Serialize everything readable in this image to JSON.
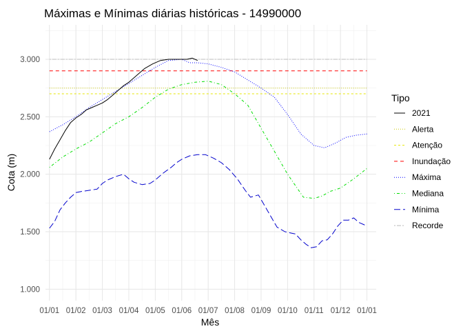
{
  "chart_data": {
    "type": "line",
    "title": "Máximas e Mínimas diárias históricas - 14990000",
    "xlabel": "Mês",
    "ylabel": "Cota (m)",
    "x_ticks": [
      "01/01",
      "01/02",
      "01/03",
      "01/04",
      "01/05",
      "01/06",
      "01/07",
      "01/08",
      "01/09",
      "01/10",
      "01/11",
      "01/12",
      "01/01"
    ],
    "y_ticks": [
      "1.000",
      "1.500",
      "2.000",
      "2.500",
      "3.000"
    ],
    "xlim": [
      -0.15,
      12.35
    ],
    "ylim": [
      0.9,
      3.3
    ],
    "grid": true,
    "legend": {
      "title": "Tipo",
      "position": "right",
      "entries": [
        {
          "name": "2021",
          "color": "#000000",
          "dash": "solid"
        },
        {
          "name": "Alerta",
          "color": "#c8c800",
          "dash": "dotted"
        },
        {
          "name": "Atenção",
          "color": "#e6e600",
          "dash": "dashed-short"
        },
        {
          "name": "Inundação",
          "color": "#ff0000",
          "dash": "dashed"
        },
        {
          "name": "Máxima",
          "color": "#0000ff",
          "dash": "dotted"
        },
        {
          "name": "Mediana",
          "color": "#00dd00",
          "dash": "dotdash"
        },
        {
          "name": "Mínima",
          "color": "#0000cc",
          "dash": "longdash"
        },
        {
          "name": "Recorde",
          "color": "#bbbbbb",
          "dash": "twodash"
        }
      ]
    },
    "series": [
      {
        "name": "2021",
        "x": [
          0,
          0.2,
          0.4,
          0.6,
          0.8,
          1,
          1.2,
          1.4,
          1.6,
          1.8,
          2,
          2.2,
          2.4,
          2.6,
          2.8,
          3,
          3.3,
          3.6,
          3.9,
          4.2,
          4.5,
          4.8,
          5,
          5.2,
          5.4,
          5.6
        ],
        "y": [
          2.13,
          2.22,
          2.3,
          2.38,
          2.45,
          2.49,
          2.52,
          2.56,
          2.58,
          2.6,
          2.62,
          2.65,
          2.69,
          2.73,
          2.77,
          2.8,
          2.86,
          2.92,
          2.96,
          2.99,
          3.0,
          3.0,
          3.0,
          3.0,
          3.01,
          2.99
        ]
      },
      {
        "name": "Alerta",
        "x": [
          0,
          12
        ],
        "y": [
          2.75,
          2.75
        ]
      },
      {
        "name": "Atenção",
        "x": [
          0,
          12
        ],
        "y": [
          2.7,
          2.7
        ]
      },
      {
        "name": "Inundação",
        "x": [
          0,
          12
        ],
        "y": [
          2.9,
          2.9
        ]
      },
      {
        "name": "Recorde",
        "x": [
          0,
          12
        ],
        "y": [
          3.0,
          3.0
        ]
      },
      {
        "name": "Máxima",
        "x": [
          0,
          0.5,
          1,
          1.5,
          2,
          2.5,
          3,
          3.5,
          4,
          4.5,
          5,
          5.3,
          5.6,
          6,
          6.5,
          7,
          7.5,
          8,
          8.5,
          9,
          9.5,
          10,
          10.4,
          10.8,
          11.2,
          11.6,
          12
        ],
        "y": [
          2.37,
          2.43,
          2.5,
          2.58,
          2.65,
          2.72,
          2.79,
          2.86,
          2.93,
          2.99,
          3.0,
          2.97,
          2.97,
          2.96,
          2.93,
          2.89,
          2.82,
          2.75,
          2.67,
          2.52,
          2.35,
          2.25,
          2.23,
          2.27,
          2.32,
          2.34,
          2.35
        ]
      },
      {
        "name": "Mediana",
        "x": [
          0,
          0.5,
          1,
          1.5,
          2,
          2.5,
          3,
          3.5,
          4,
          4.5,
          5,
          5.5,
          6,
          6.5,
          7,
          7.5,
          8,
          8.5,
          9,
          9.3,
          9.6,
          10,
          10.3,
          10.6,
          11,
          11.5,
          12
        ],
        "y": [
          2.06,
          2.15,
          2.22,
          2.28,
          2.36,
          2.44,
          2.5,
          2.58,
          2.67,
          2.74,
          2.78,
          2.8,
          2.81,
          2.78,
          2.7,
          2.6,
          2.4,
          2.2,
          2.0,
          1.9,
          1.8,
          1.79,
          1.81,
          1.85,
          1.88,
          1.96,
          2.05
        ]
      },
      {
        "name": "Mínima",
        "x": [
          0,
          0.2,
          0.4,
          0.6,
          0.8,
          1,
          1.2,
          1.5,
          1.8,
          2,
          2.2,
          2.5,
          2.8,
          3,
          3.2,
          3.5,
          3.8,
          4,
          4.3,
          4.6,
          4.8,
          5,
          5.3,
          5.6,
          5.9,
          6.2,
          6.5,
          6.8,
          7.1,
          7.4,
          7.6,
          7.9,
          8.1,
          8.4,
          8.6,
          8.9,
          9.1,
          9.3,
          9.5,
          9.7,
          9.9,
          10.1,
          10.3,
          10.5,
          10.7,
          10.9,
          11.1,
          11.3,
          11.5,
          11.7,
          11.9,
          12
        ],
        "y": [
          1.53,
          1.59,
          1.69,
          1.75,
          1.8,
          1.84,
          1.85,
          1.86,
          1.87,
          1.92,
          1.95,
          1.98,
          2.0,
          1.96,
          1.93,
          1.91,
          1.92,
          1.95,
          2.01,
          2.06,
          2.1,
          2.13,
          2.16,
          2.17,
          2.17,
          2.14,
          2.1,
          2.04,
          1.96,
          1.86,
          1.8,
          1.82,
          1.74,
          1.62,
          1.54,
          1.5,
          1.49,
          1.48,
          1.43,
          1.39,
          1.36,
          1.37,
          1.42,
          1.43,
          1.48,
          1.55,
          1.6,
          1.6,
          1.62,
          1.58,
          1.56,
          1.55
        ]
      }
    ]
  }
}
